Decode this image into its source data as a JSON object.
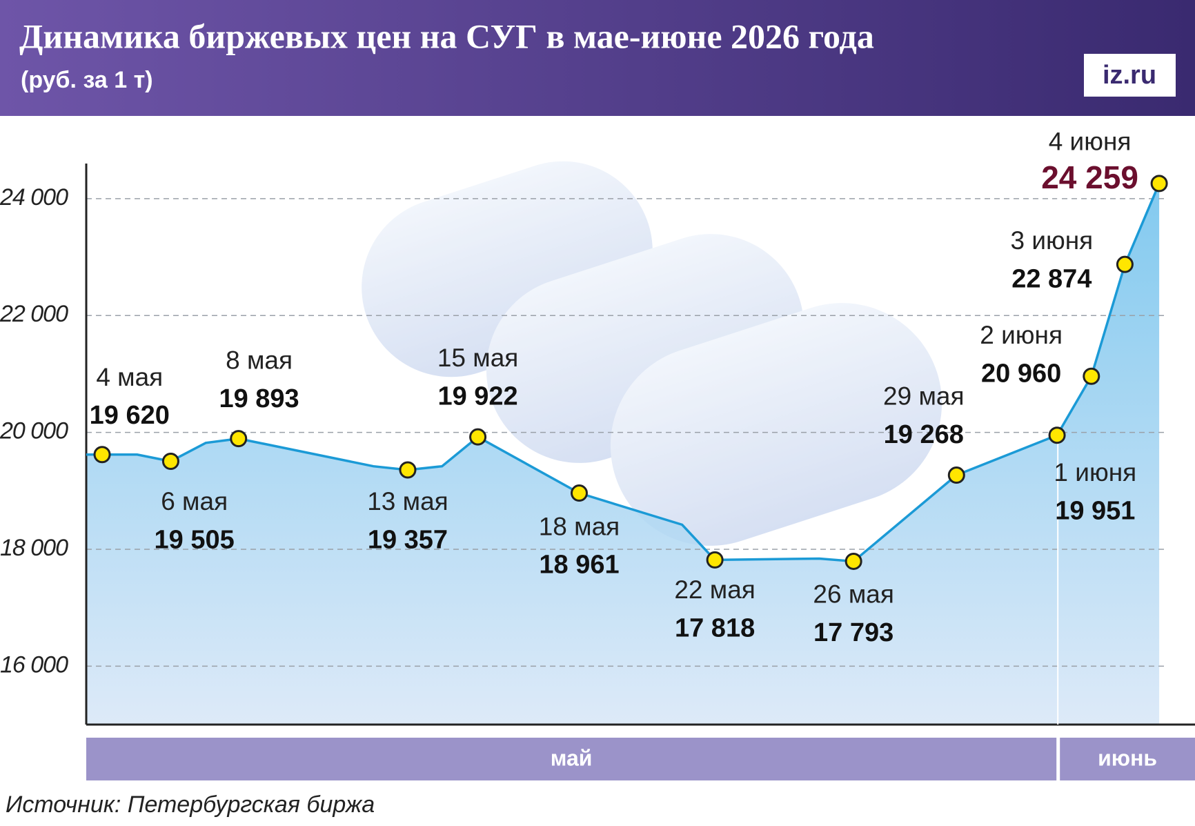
{
  "header": {
    "title": "Динамика биржевых цен на СУГ в мае-июне 2026 года",
    "subtitle": "(руб. за 1 т)",
    "logo": "iz.ru"
  },
  "chart_data": {
    "type": "line",
    "categories": [
      "4 мая",
      null,
      "6 мая",
      null,
      "8 мая",
      null,
      "13 мая",
      null,
      "15 мая",
      "18 мая",
      null,
      null,
      "22 мая",
      null,
      "26 мая",
      "29 мая",
      "1 июня",
      "2 июня",
      "3 июня",
      "4 июня"
    ],
    "values": [
      19620,
      19620,
      19505,
      19820,
      19893,
      19420,
      19357,
      19420,
      19922,
      18961,
      18600,
      18420,
      17818,
      17840,
      17793,
      19268,
      19951,
      20960,
      22874,
      24259
    ],
    "value_labels": [
      "19 620",
      null,
      "19 505",
      null,
      "19 893",
      null,
      "19 357",
      null,
      "19 922",
      "18 961",
      null,
      null,
      "17 818",
      null,
      "17 793",
      "19 268",
      "19 951",
      "20 960",
      "22 874",
      "24 259"
    ],
    "color": "#1b9ad6",
    "marker_color": "#ffe600",
    "highlight_color": "#6b0f2e",
    "ylim": [
      15000,
      24600
    ],
    "yticks": [
      {
        "value": 16000,
        "label": "16 000"
      },
      {
        "value": 18000,
        "label": "18 000"
      },
      {
        "value": 20000,
        "label": "20 000"
      },
      {
        "value": 22000,
        "label": "22 000"
      },
      {
        "value": 24000,
        "label": "24 000"
      }
    ],
    "grid": true,
    "months": [
      "май",
      "июнь"
    ]
  },
  "source": "Источник: Петербургская биржа"
}
